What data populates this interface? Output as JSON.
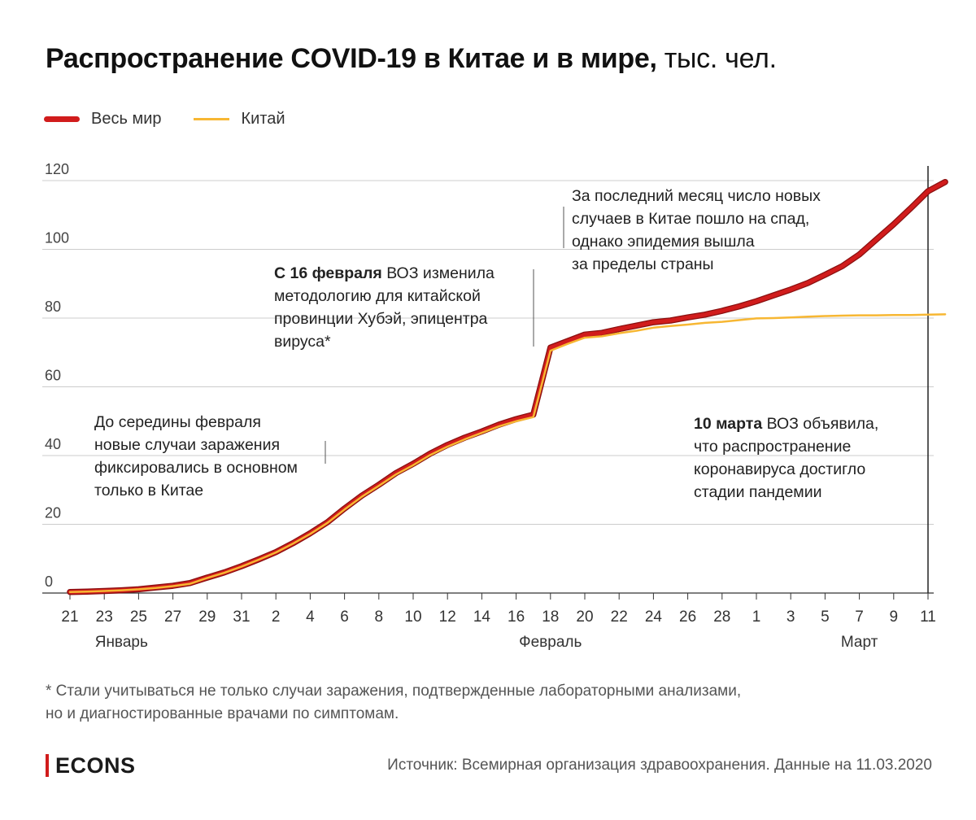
{
  "header": {
    "title_bold": "Распространение COVID-19 в Китае и в мире,",
    "title_unit": "тыс. чел."
  },
  "legend": {
    "world": "Весь мир",
    "china": "Китай"
  },
  "colors": {
    "world": "#d11c1c",
    "world_outline": "#8a1010",
    "china": "#f7b733",
    "grid": "#cccccc",
    "axis": "#333333"
  },
  "chart_data": {
    "type": "line",
    "title": "Распространение COVID-19 в Китае и в мире, тыс. чел.",
    "ylim": [
      0,
      120
    ],
    "yticks": [
      "0",
      "20",
      "40",
      "60",
      "80",
      "100",
      "120"
    ],
    "xticks": [
      "21",
      "23",
      "25",
      "27",
      "29",
      "31",
      "2",
      "4",
      "6",
      "8",
      "10",
      "12",
      "14",
      "16",
      "18",
      "20",
      "22",
      "24",
      "26",
      "28",
      "1",
      "3",
      "5",
      "7",
      "9",
      "11"
    ],
    "months": [
      {
        "label": "Январь",
        "tick": 3
      },
      {
        "label": "Февраль",
        "tick": 28
      },
      {
        "label": "Март",
        "tick": 46
      }
    ],
    "series": [
      {
        "name": "Весь мир",
        "values": [
          0.3,
          0.4,
          0.6,
          0.8,
          1.1,
          1.6,
          2.1,
          2.9,
          4.5,
          6.0,
          7.8,
          9.8,
          11.9,
          14.5,
          17.4,
          20.6,
          24.6,
          28.3,
          31.5,
          34.9,
          37.6,
          40.6,
          43.1,
          45.2,
          47.0,
          49.0,
          50.6,
          51.9,
          71.4,
          73.3,
          75.2,
          75.7,
          76.8,
          77.8,
          78.8,
          79.3,
          80.2,
          81.0,
          82.1,
          83.4,
          84.9,
          86.6,
          88.3,
          90.2,
          92.6,
          95.1,
          98.5,
          102.9,
          107.3,
          112.0,
          116.9,
          119.6
        ]
      },
      {
        "name": "Китай",
        "values": [
          0.3,
          0.4,
          0.6,
          0.8,
          1.1,
          1.5,
          2.0,
          2.7,
          4.4,
          5.9,
          7.7,
          9.7,
          11.8,
          14.4,
          17.2,
          20.4,
          24.3,
          28.0,
          31.2,
          34.5,
          37.2,
          40.2,
          42.6,
          44.7,
          46.6,
          48.5,
          50.0,
          51.2,
          70.5,
          72.5,
          74.3,
          74.7,
          75.6,
          76.3,
          77.2,
          77.7,
          78.1,
          78.6,
          78.9,
          79.4,
          79.9,
          80.0,
          80.2,
          80.4,
          80.6,
          80.7,
          80.8,
          80.8,
          80.9,
          80.9,
          81.0,
          81.1
        ]
      }
    ],
    "vline_at_tick": 50
  },
  "annotations": {
    "jan": [
      "До середины февраля",
      "новые случаи заражения",
      "фиксировались в основном",
      "только в Китае"
    ],
    "feb_bold": "С 16 февраля",
    "feb_first": " ВОЗ изменила",
    "feb_rest": [
      "методологию для китайской",
      "провинции Хубэй, эпицентра",
      "вируса*"
    ],
    "month": [
      "За последний месяц число новых",
      "случаев в Китае пошло на спад,",
      "однако эпидемия вышла",
      "за пределы страны"
    ],
    "march_bold": "10 марта",
    "march_first": " ВОЗ объявила,",
    "march_rest": [
      "что распространение",
      "коронавируса достигло",
      "стадии пандемии"
    ]
  },
  "footnote": {
    "line1": "* Стали учитываться не только случаи заражения, подтвержденные лабораторными анализами,",
    "line2": "но и диагностированные врачами по симптомам."
  },
  "brand": "ECONS",
  "source": "Источник: Всемирная организация здравоохранения. Данные на 11.03.2020"
}
